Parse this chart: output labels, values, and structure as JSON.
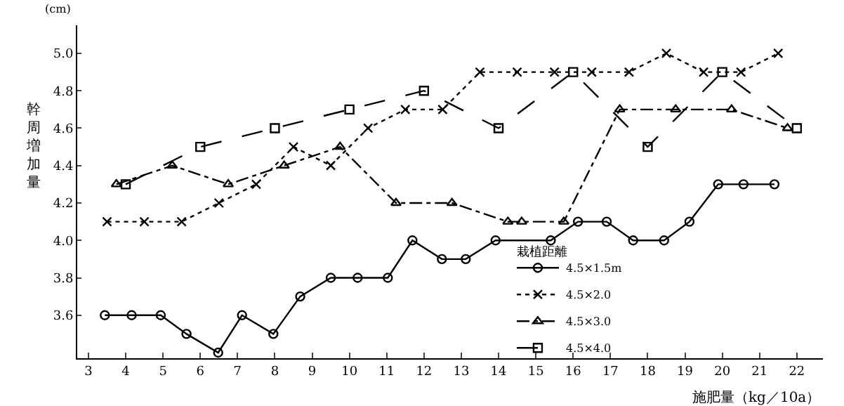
{
  "chart_data": {
    "type": "line",
    "xlabel": "施肥量（kg／10a）",
    "ylabel": "幹周増加量",
    "legend_title": "栽植距離",
    "annotations": [
      "(cm)"
    ],
    "xlim": [
      2.7,
      22.7
    ],
    "xticks": [
      3,
      4,
      5,
      6,
      7,
      8,
      9,
      10,
      11,
      12,
      13,
      14,
      15,
      16,
      17,
      18,
      19,
      20,
      21,
      22
    ],
    "ylim": [
      3.37,
      5.15
    ],
    "yticks": [
      3.6,
      3.8,
      {
        "value": 4.0,
        "label": "4.0"
      },
      4.2,
      4.4,
      4.6,
      4.8,
      {
        "value": 5.0,
        "label": "5.0"
      }
    ],
    "grid": false,
    "legend": "bottom right",
    "series": [
      {
        "name": "4.5×1.5m",
        "color": "#000000",
        "marker": "circle",
        "line_style": "solid",
        "x": [
          3.44,
          4.16,
          4.94,
          5.63,
          6.48,
          7.12,
          7.96,
          8.68,
          9.5,
          10.22,
          11.03,
          11.69,
          12.48,
          13.12,
          13.92,
          15.4,
          16.13,
          16.9,
          17.61,
          18.44,
          19.12,
          19.89,
          20.57,
          21.4
        ],
        "values": [
          3.6,
          3.6,
          3.6,
          3.5,
          3.4,
          3.6,
          3.5,
          3.7,
          3.8,
          3.8,
          3.8,
          4.0,
          3.9,
          3.9,
          4.0,
          4.0,
          4.1,
          4.1,
          4.0,
          4.0,
          4.1,
          4.3,
          4.3,
          4.3
        ]
      },
      {
        "name": "4.5×2.0",
        "color": "#000000",
        "marker": "cross",
        "line_style": "dotted",
        "x": [
          3.5,
          4.5,
          5.5,
          6.5,
          7.5,
          8.5,
          9.5,
          10.5,
          11.5,
          12.5,
          13.5,
          14.5,
          15.5,
          16.5,
          17.5,
          18.5,
          19.5,
          20.5,
          21.5
        ],
        "values": [
          4.1,
          4.1,
          4.1,
          4.2,
          4.3,
          4.5,
          4.4,
          4.6,
          4.7,
          4.7,
          4.9,
          4.9,
          4.9,
          4.9,
          4.9,
          5.0,
          4.9,
          4.9,
          5.0
        ]
      },
      {
        "name": "4.5×3.0",
        "color": "#000000",
        "marker": "triangle",
        "line_style": "dashdot",
        "x": [
          3.75,
          5.25,
          6.75,
          8.25,
          9.75,
          11.25,
          12.75,
          14.25,
          14.62,
          15.75,
          17.25,
          18.75,
          20.25,
          21.75
        ],
        "values": [
          4.3,
          4.4,
          4.3,
          4.4,
          4.5,
          4.2,
          4.2,
          4.1,
          4.1,
          4.1,
          4.7,
          4.7,
          4.7,
          4.6
        ]
      },
      {
        "name": "4.5×4.0",
        "color": "#000000",
        "marker": "square",
        "line_style": "longdash",
        "x": [
          4,
          6,
          8,
          10,
          12,
          14,
          16,
          18,
          20,
          22
        ],
        "values": [
          4.3,
          4.5,
          4.6,
          4.7,
          4.8,
          4.6,
          4.9,
          4.5,
          4.9,
          4.6
        ]
      }
    ]
  }
}
